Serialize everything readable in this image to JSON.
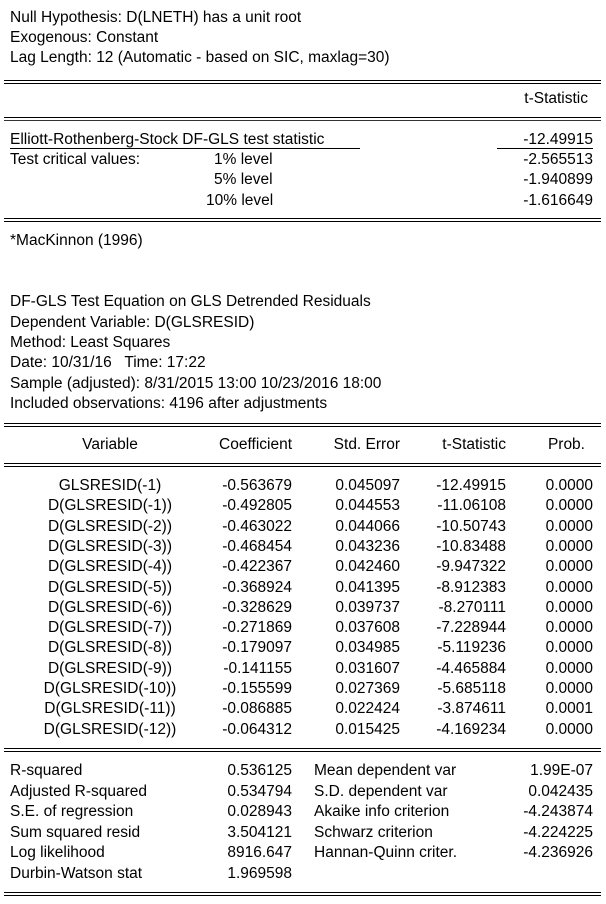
{
  "header": {
    "null_hypothesis": "Null Hypothesis: D(LNETH) has a unit root",
    "exogenous": "Exogenous: Constant",
    "lag_length": "Lag Length: 12 (Automatic - based on SIC, maxlag=30)"
  },
  "test_table": {
    "col_header": "t-Statistic",
    "stat_label": "Elliott-Rothenberg-Stock DF-GLS test statistic",
    "stat_value": "-12.49915",
    "crit_label": "Test critical values:",
    "levels": [
      {
        "label": "1% level",
        "value": "-2.565513"
      },
      {
        "label": "5% level",
        "value": "-1.940899"
      },
      {
        "label": "10% level",
        "value": "-1.616649"
      }
    ],
    "footnote": "*MacKinnon (1996)"
  },
  "equation": {
    "title": "DF-GLS Test Equation on GLS Detrended Residuals",
    "dependent": "Dependent Variable: D(GLSRESID)",
    "method": "Method: Least Squares",
    "date": "Date: 10/31/16   Time: 17:22",
    "sample": "Sample (adjusted): 8/31/2015 13:00 10/23/2016 18:00",
    "observations": "Included observations: 4196 after adjustments"
  },
  "coef_table": {
    "headers": [
      "Variable",
      "Coefficient",
      "Std. Error",
      "t-Statistic",
      "Prob."
    ],
    "rows": [
      [
        "GLSRESID(-1)",
        "-0.563679",
        "0.045097",
        "-12.49915",
        "0.0000"
      ],
      [
        "D(GLSRESID(-1))",
        "-0.492805",
        "0.044553",
        "-11.06108",
        "0.0000"
      ],
      [
        "D(GLSRESID(-2))",
        "-0.463022",
        "0.044066",
        "-10.50743",
        "0.0000"
      ],
      [
        "D(GLSRESID(-3))",
        "-0.468454",
        "0.043236",
        "-10.83488",
        "0.0000"
      ],
      [
        "D(GLSRESID(-4))",
        "-0.422367",
        "0.042460",
        "-9.947322",
        "0.0000"
      ],
      [
        "D(GLSRESID(-5))",
        "-0.368924",
        "0.041395",
        "-8.912383",
        "0.0000"
      ],
      [
        "D(GLSRESID(-6))",
        "-0.328629",
        "0.039737",
        "-8.270111",
        "0.0000"
      ],
      [
        "D(GLSRESID(-7))",
        "-0.271869",
        "0.037608",
        "-7.228944",
        "0.0000"
      ],
      [
        "D(GLSRESID(-8))",
        "-0.179097",
        "0.034985",
        "-5.119236",
        "0.0000"
      ],
      [
        "D(GLSRESID(-9))",
        "-0.141155",
        "0.031607",
        "-4.465884",
        "0.0000"
      ],
      [
        "D(GLSRESID(-10))",
        "-0.155599",
        "0.027369",
        "-5.685118",
        "0.0000"
      ],
      [
        "D(GLSRESID(-11))",
        "-0.086885",
        "0.022424",
        "-3.874611",
        "0.0001"
      ],
      [
        "D(GLSRESID(-12))",
        "-0.064312",
        "0.015425",
        "-4.169234",
        "0.0000"
      ]
    ]
  },
  "stats": {
    "left": [
      {
        "label": "R-squared",
        "value": "0.536125"
      },
      {
        "label": "Adjusted R-squared",
        "value": "0.534794"
      },
      {
        "label": "S.E. of regression",
        "value": "0.028943"
      },
      {
        "label": "Sum squared resid",
        "value": "3.504121"
      },
      {
        "label": "Log likelihood",
        "value": "8916.647"
      },
      {
        "label": "Durbin-Watson stat",
        "value": "1.969598"
      }
    ],
    "right": [
      {
        "label": "Mean dependent var",
        "value": "1.99E-07"
      },
      {
        "label": "S.D. dependent var",
        "value": "0.042435"
      },
      {
        "label": "Akaike info criterion",
        "value": "-4.243874"
      },
      {
        "label": "Schwarz criterion",
        "value": "-4.224225"
      },
      {
        "label": "Hannan-Quinn criter.",
        "value": "-4.236926"
      }
    ]
  }
}
